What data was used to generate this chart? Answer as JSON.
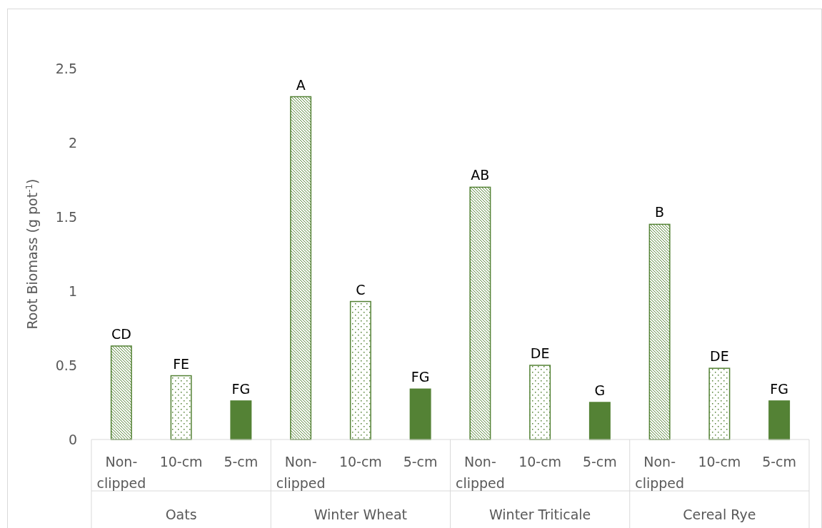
{
  "chart_data": {
    "type": "bar",
    "ylabel": "Root Biomass (g pot$^{-1}$)",
    "categories": [
      "Non-clipped",
      "10-cm",
      "5-cm",
      "Non-clipped",
      "10-cm",
      "5-cm",
      "Non-clipped",
      "10-cm",
      "5-cm",
      "Non-clipped",
      "10-cm",
      "5-cm"
    ],
    "values": [
      0.63,
      0.43,
      0.26,
      2.31,
      0.93,
      0.34,
      1.7,
      0.5,
      0.25,
      1.45,
      0.48,
      0.26
    ],
    "colors": [
      "#548235",
      "#548235",
      "#548235",
      "#548235",
      "#548235",
      "#548235",
      "#548235",
      "#548235",
      "#548235",
      "#548235",
      "#548235",
      "#548235"
    ],
    "value_labels": [
      "CD",
      "FE",
      "FG",
      "A",
      "C",
      "FG",
      "AB",
      "DE",
      "G",
      "B",
      "DE",
      "FG"
    ],
    "annotations": [
      "Oats",
      "Winter Wheat",
      "Winter Triticale",
      "Cereal Rye"
    ],
    "ylim": [
      0,
      2.5
    ],
    "yticks": [
      0,
      0.5,
      1,
      1.5,
      2,
      2.5
    ],
    "grid": false
  }
}
